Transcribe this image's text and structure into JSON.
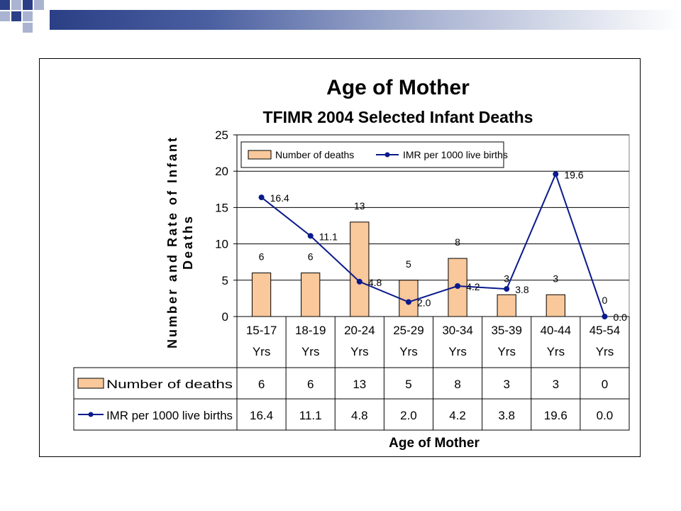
{
  "chart_data": {
    "type": "bar+line",
    "title": "Age of Mother",
    "subtitle": "TFIMR 2004 Selected Infant Deaths",
    "ylabel_line1": "Number and Rate of Infant",
    "ylabel_line2": "Deaths",
    "xlabel": "Age of Mother",
    "ylim": [
      0,
      25
    ],
    "yticks": [
      "0",
      "5",
      "10",
      "15",
      "20",
      "25"
    ],
    "grid": true,
    "legend_position": "top-left",
    "categories_line1": [
      "15-17",
      "18-19",
      "20-24",
      "25-29",
      "30-34",
      "35-39",
      "40-44",
      "45-54"
    ],
    "categories_line2": [
      "Yrs",
      "Yrs",
      "Yrs",
      "Yrs",
      "Yrs",
      "Yrs",
      "Yrs",
      "Yrs"
    ],
    "series": [
      {
        "name": "Number of deaths",
        "kind": "bar",
        "color": "#f9c89b",
        "values": [
          6,
          6,
          13,
          5,
          8,
          3,
          3,
          0
        ],
        "labels": [
          "6",
          "6",
          "13",
          "5",
          "8",
          "3",
          "3",
          "0"
        ]
      },
      {
        "name": "IMR per 1000 live births",
        "kind": "line",
        "color": "#0a1a8c",
        "values": [
          16.4,
          11.1,
          4.8,
          2.0,
          4.2,
          3.8,
          19.6,
          0.0
        ],
        "labels": [
          "16.4",
          "11.1",
          "4.8",
          "2.0",
          "4.2",
          "3.8",
          "19.6",
          "0.0"
        ]
      }
    ],
    "table": {
      "rows": [
        {
          "name": "Number of deaths",
          "cells": [
            "6",
            "6",
            "13",
            "5",
            "8",
            "3",
            "3",
            "0"
          ]
        },
        {
          "name": "IMR per 1000 live births",
          "cells": [
            "16.4",
            "11.1",
            "4.8",
            "2.0",
            "4.2",
            "3.8",
            "19.6",
            "0.0"
          ]
        }
      ]
    }
  }
}
